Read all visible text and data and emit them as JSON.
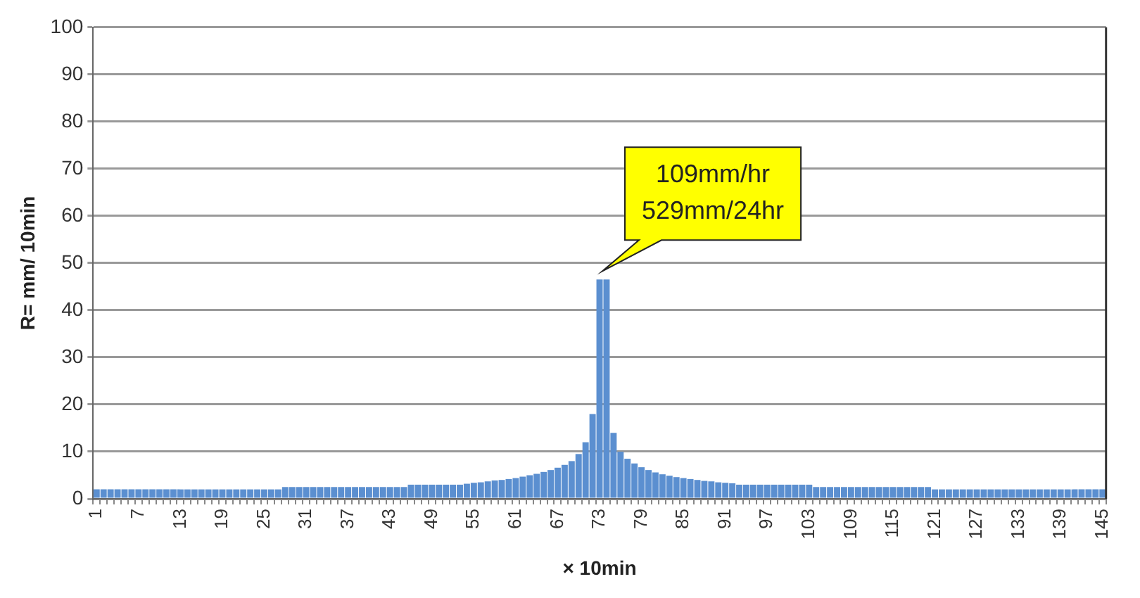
{
  "chart_data": {
    "type": "bar",
    "xlabel": "× 10min",
    "ylabel": "R= mm/ 10min",
    "categories": [
      "1",
      null,
      null,
      null,
      null,
      null,
      "7",
      null,
      null,
      null,
      null,
      null,
      "13",
      null,
      null,
      null,
      null,
      null,
      "19",
      null,
      null,
      null,
      null,
      null,
      "25",
      null,
      null,
      null,
      null,
      null,
      "31",
      null,
      null,
      null,
      null,
      null,
      "37",
      null,
      null,
      null,
      null,
      null,
      "43",
      null,
      null,
      null,
      null,
      null,
      "49",
      null,
      null,
      null,
      null,
      null,
      "55",
      null,
      null,
      null,
      null,
      null,
      "61",
      null,
      null,
      null,
      null,
      null,
      "67",
      null,
      null,
      null,
      null,
      null,
      "73",
      null,
      null,
      null,
      null,
      null,
      "79",
      null,
      null,
      null,
      null,
      null,
      "85",
      null,
      null,
      null,
      null,
      null,
      "91",
      null,
      null,
      null,
      null,
      null,
      "97",
      null,
      null,
      null,
      null,
      null,
      "103",
      null,
      null,
      null,
      null,
      null,
      "109",
      null,
      null,
      null,
      null,
      null,
      "115",
      null,
      null,
      null,
      null,
      null,
      "121",
      null,
      null,
      null,
      null,
      null,
      "127",
      null,
      null,
      null,
      null,
      null,
      "133",
      null,
      null,
      null,
      null,
      null,
      "139",
      null,
      null,
      null,
      null,
      null,
      "145"
    ],
    "values": [
      2,
      2,
      2,
      2,
      2,
      2,
      2,
      2,
      2,
      2,
      2,
      2,
      2,
      2,
      2,
      2,
      2,
      2,
      2,
      2,
      2,
      2,
      2,
      2,
      2,
      2,
      2,
      2.5,
      2.5,
      2.5,
      2.5,
      2.5,
      2.5,
      2.5,
      2.5,
      2.5,
      2.5,
      2.5,
      2.5,
      2.5,
      2.5,
      2.5,
      2.5,
      2.5,
      2.5,
      3,
      3,
      3,
      3,
      3,
      3,
      3,
      3,
      3.2,
      3.4,
      3.5,
      3.7,
      3.9,
      4,
      4.2,
      4.4,
      4.7,
      5,
      5.3,
      5.7,
      6.1,
      6.6,
      7.2,
      8,
      9.5,
      12,
      18,
      46.5,
      46.5,
      14,
      10,
      8.5,
      7.5,
      6.7,
      6.1,
      5.6,
      5.2,
      4.9,
      4.6,
      4.4,
      4.2,
      4,
      3.8,
      3.7,
      3.5,
      3.4,
      3.3,
      3,
      3,
      3,
      3,
      3,
      3,
      3,
      3,
      3,
      3,
      3,
      2.5,
      2.5,
      2.5,
      2.5,
      2.5,
      2.5,
      2.5,
      2.5,
      2.5,
      2.5,
      2.5,
      2.5,
      2.5,
      2.5,
      2.5,
      2.5,
      2.5,
      2,
      2,
      2,
      2,
      2,
      2,
      2,
      2,
      2,
      2,
      2,
      2,
      2,
      2,
      2,
      2,
      2,
      2,
      2,
      2,
      2,
      2,
      2,
      2,
      2
    ],
    "color": "#5b8fd0",
    "ylim": [
      0,
      100
    ],
    "yticks": [
      0,
      10,
      20,
      30,
      40,
      50,
      60,
      70,
      80,
      90,
      100
    ],
    "grid": "y",
    "legend": false,
    "annotations": [
      {
        "text": "109mm/hr\n529mm/24hr",
        "x": "73",
        "y": 46.5
      }
    ]
  }
}
